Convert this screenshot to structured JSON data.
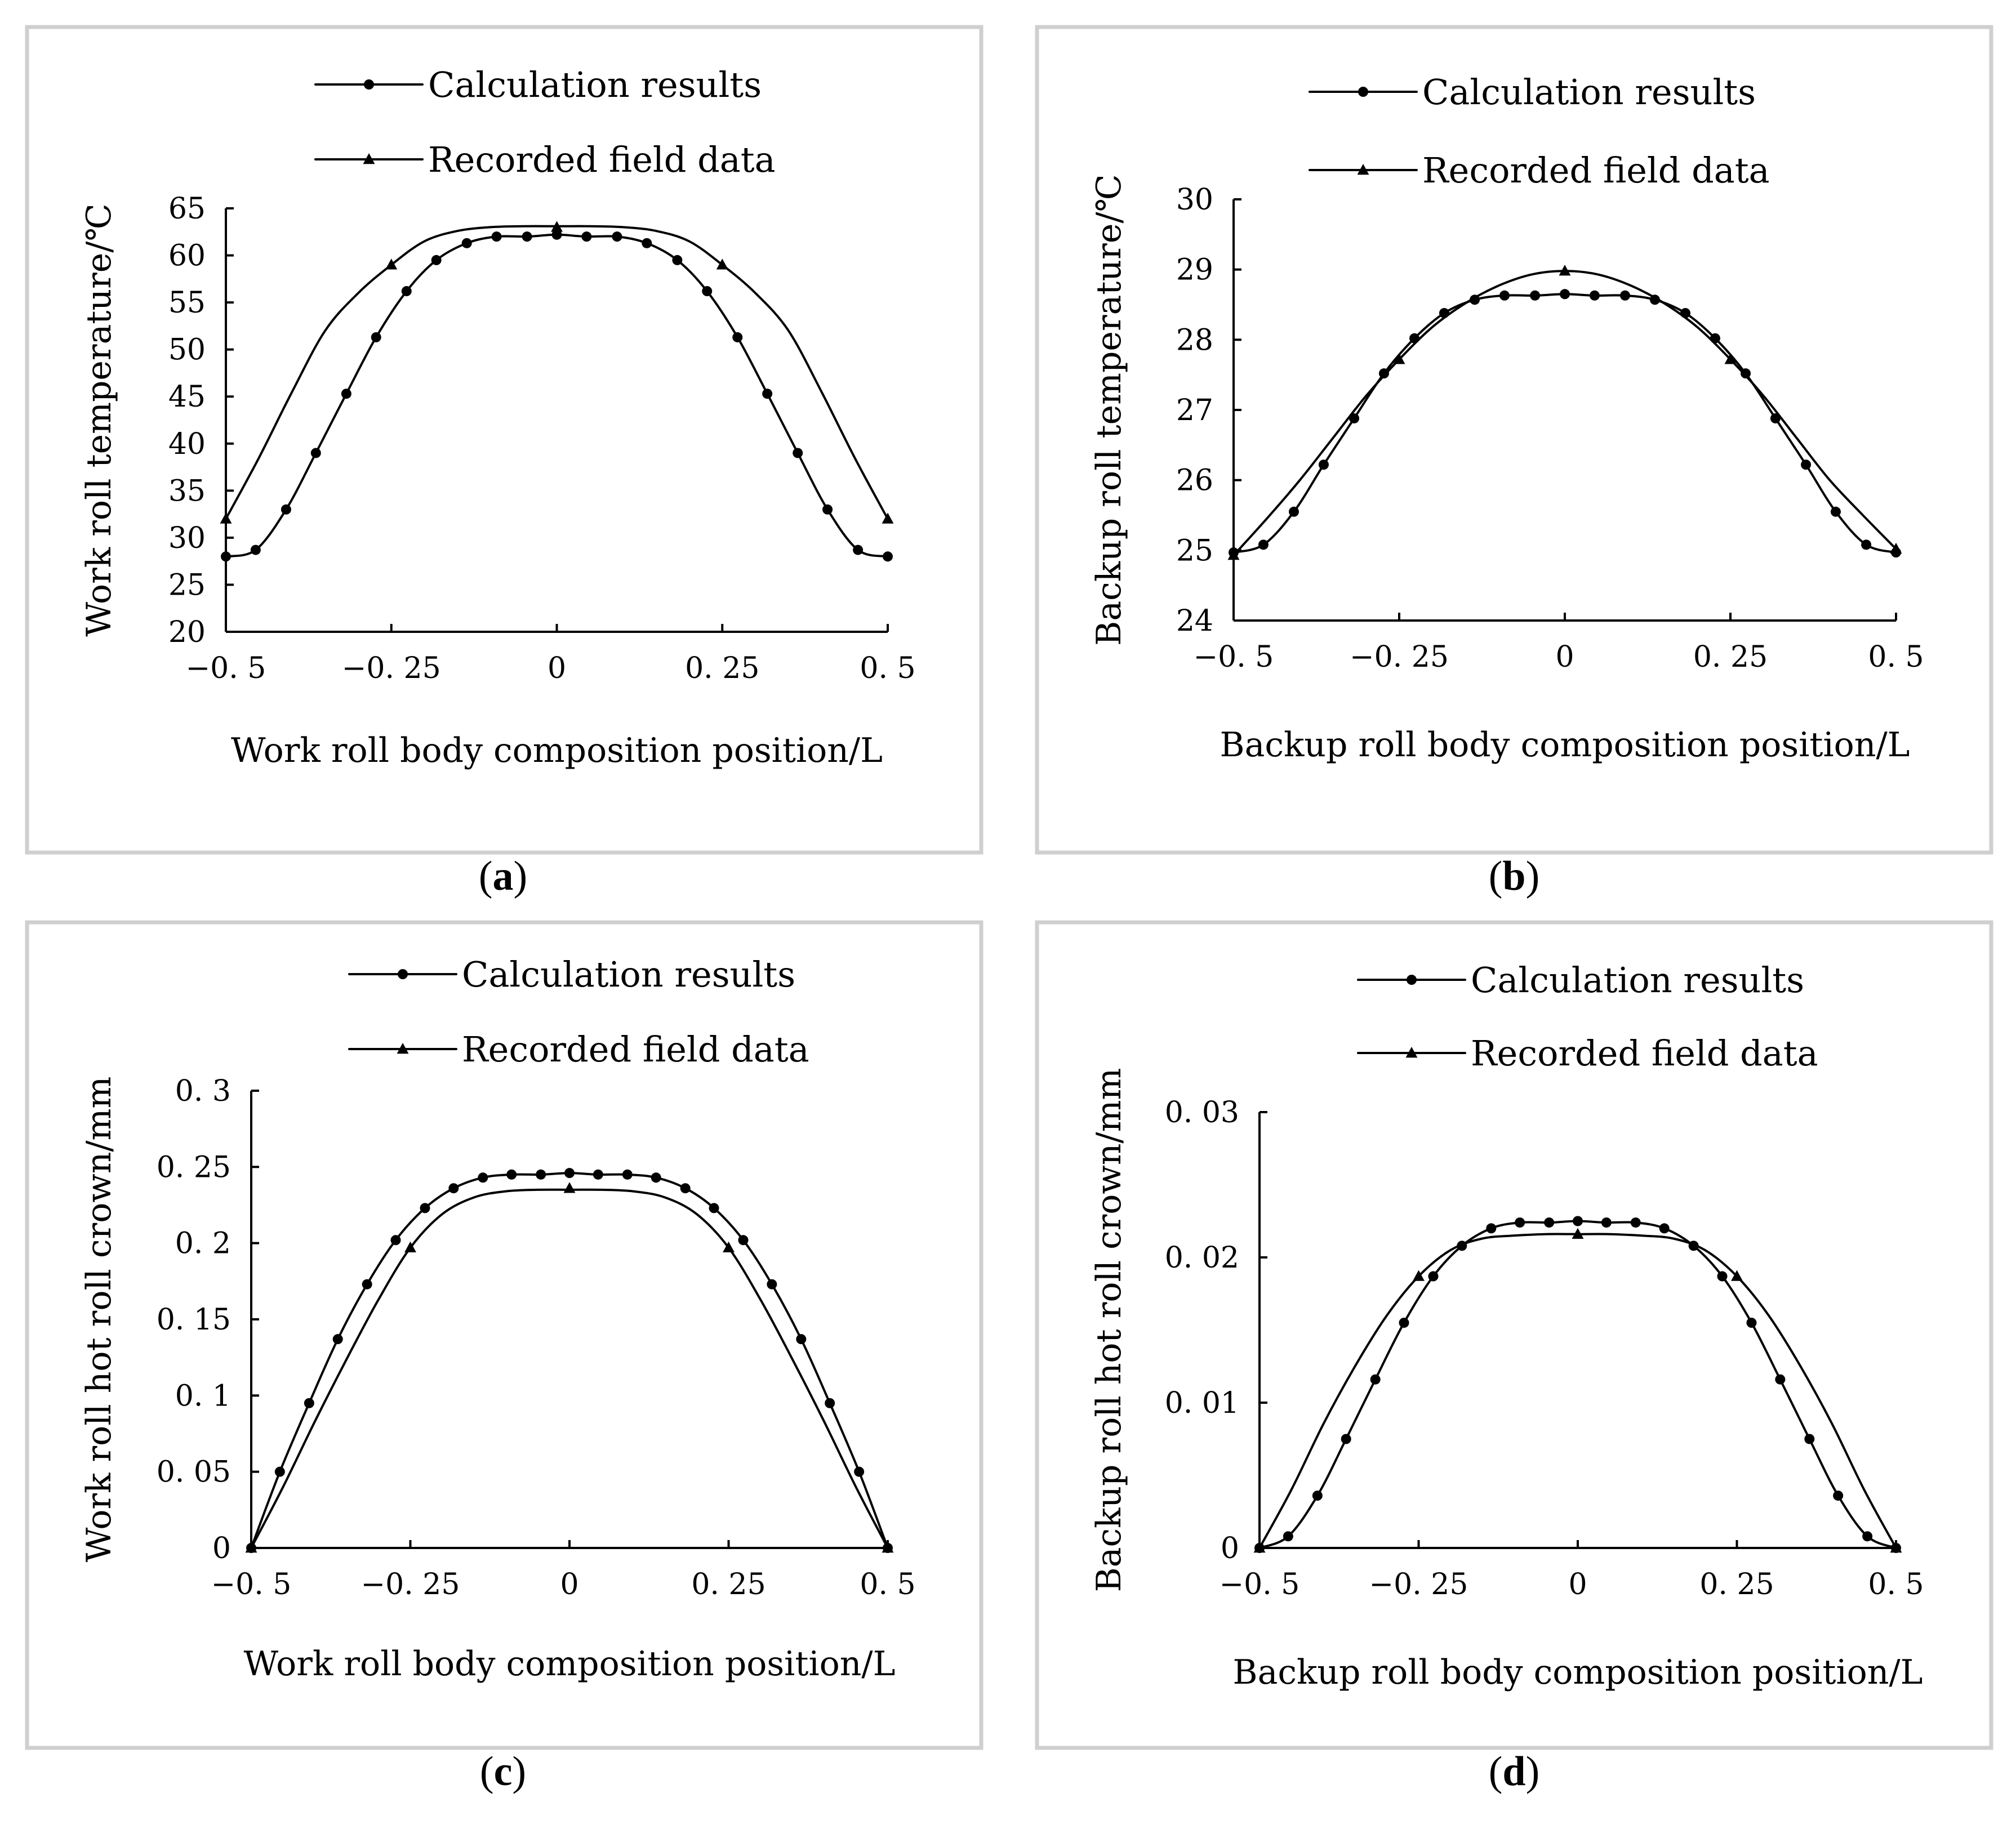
{
  "chart_data": [
    {
      "type": "line",
      "caption_letter": "a",
      "xlabel": "Work roll body composition position/L",
      "ylabel": "Work roll temperature/℃",
      "xlim": [
        -0.5,
        0.5
      ],
      "ylim": [
        20,
        65
      ],
      "xticks": [
        -0.5,
        -0.25,
        0,
        0.25,
        0.5
      ],
      "xtick_labels": [
        "−0. 5",
        "−0. 25",
        "0",
        "0. 25",
        "0. 5"
      ],
      "yticks": [
        20,
        25,
        30,
        35,
        40,
        45,
        50,
        55,
        60,
        65
      ],
      "ytick_labels": [
        "20",
        "25",
        "30",
        "35",
        "40",
        "45",
        "50",
        "55",
        "60",
        "65"
      ],
      "legend": {
        "position": "top",
        "entries": [
          "Calculation results",
          "Recorded field data"
        ]
      },
      "series": [
        {
          "name": "Calculation results",
          "marker": "circle",
          "x": [
            -0.5,
            -0.455,
            -0.409,
            -0.364,
            -0.318,
            -0.273,
            -0.227,
            -0.182,
            -0.136,
            -0.091,
            -0.045,
            0,
            0.045,
            0.091,
            0.136,
            0.182,
            0.227,
            0.273,
            0.318,
            0.364,
            0.409,
            0.455,
            0.5
          ],
          "values": [
            28,
            28.7,
            33,
            39,
            45.3,
            51.3,
            56.2,
            59.5,
            61.3,
            62,
            62,
            62.2,
            62,
            62,
            61.3,
            59.5,
            56.2,
            51.3,
            45.3,
            39,
            33,
            28.7,
            28
          ]
        },
        {
          "name": "Recorded field data",
          "marker": "triangle",
          "x": [
            -0.5,
            -0.25,
            0,
            0.25,
            0.5
          ],
          "values": [
            32,
            59,
            63,
            59,
            32
          ],
          "curve_x": [
            -0.5,
            -0.45,
            -0.4,
            -0.35,
            -0.3,
            -0.25,
            -0.2,
            -0.15,
            -0.1,
            -0.05,
            0,
            0.05,
            0.1,
            0.15,
            0.2,
            0.25,
            0.3,
            0.35,
            0.4,
            0.45,
            0.5
          ],
          "curve_values": [
            32,
            38.5,
            45.5,
            52,
            56,
            59,
            61.5,
            62.6,
            63,
            63.1,
            63.1,
            63.1,
            63,
            62.6,
            61.5,
            59,
            56,
            52,
            45.5,
            38.5,
            32
          ]
        }
      ]
    },
    {
      "type": "line",
      "caption_letter": "b",
      "xlabel": "Backup roll body composition position/L",
      "ylabel": "Backup roll temperature/℃",
      "xlim": [
        -0.5,
        0.5
      ],
      "ylim": [
        24,
        30
      ],
      "xticks": [
        -0.5,
        -0.25,
        0,
        0.25,
        0.5
      ],
      "xtick_labels": [
        "−0. 5",
        "−0. 25",
        "0",
        "0. 25",
        "0. 5"
      ],
      "yticks": [
        24,
        25,
        26,
        27,
        28,
        29,
        30
      ],
      "ytick_labels": [
        "24",
        "25",
        "26",
        "27",
        "28",
        "29",
        "30"
      ],
      "legend": {
        "position": "top",
        "entries": [
          "Calculation results",
          "Recorded field data"
        ]
      },
      "series": [
        {
          "name": "Calculation results",
          "marker": "circle",
          "x": [
            -0.5,
            -0.455,
            -0.409,
            -0.364,
            -0.318,
            -0.273,
            -0.227,
            -0.182,
            -0.136,
            -0.091,
            -0.045,
            0,
            0.045,
            0.091,
            0.136,
            0.182,
            0.227,
            0.273,
            0.318,
            0.364,
            0.409,
            0.455,
            0.5
          ],
          "values": [
            24.97,
            25.08,
            25.55,
            26.22,
            26.88,
            27.52,
            28.02,
            28.38,
            28.57,
            28.63,
            28.63,
            28.65,
            28.63,
            28.63,
            28.57,
            28.38,
            28.02,
            27.52,
            26.88,
            26.22,
            25.55,
            25.08,
            24.97
          ]
        },
        {
          "name": "Recorded field data",
          "marker": "triangle",
          "x": [
            -0.5,
            -0.25,
            0,
            0.25,
            0.5
          ],
          "values": [
            24.93,
            27.72,
            28.98,
            27.72,
            25.02
          ],
          "curve_x": [
            -0.5,
            -0.45,
            -0.4,
            -0.35,
            -0.3,
            -0.25,
            -0.2,
            -0.15,
            -0.1,
            -0.05,
            0,
            0.05,
            0.1,
            0.15,
            0.2,
            0.25,
            0.3,
            0.35,
            0.4,
            0.45,
            0.5
          ],
          "curve_values": [
            24.93,
            25.45,
            26.0,
            26.6,
            27.2,
            27.72,
            28.18,
            28.52,
            28.77,
            28.93,
            28.98,
            28.93,
            28.77,
            28.52,
            28.18,
            27.72,
            27.2,
            26.6,
            26.0,
            25.5,
            25.02
          ]
        }
      ]
    },
    {
      "type": "line",
      "caption_letter": "c",
      "xlabel": "Work roll body composition position/L",
      "ylabel": "Work roll hot roll crown/mm",
      "xlim": [
        -0.5,
        0.5
      ],
      "ylim": [
        0,
        0.3
      ],
      "xticks": [
        -0.5,
        -0.25,
        0,
        0.25,
        0.5
      ],
      "xtick_labels": [
        "−0. 5",
        "−0. 25",
        "0",
        "0. 25",
        "0. 5"
      ],
      "yticks": [
        0,
        0.05,
        0.1,
        0.15,
        0.2,
        0.25,
        0.3
      ],
      "ytick_labels": [
        "0",
        "0. 05",
        "0. 1",
        "0. 15",
        "0. 2",
        "0. 25",
        "0. 3"
      ],
      "legend": {
        "position": "top",
        "entries": [
          "Calculation results",
          "Recorded field data"
        ]
      },
      "series": [
        {
          "name": "Calculation results",
          "marker": "circle",
          "x": [
            -0.5,
            -0.455,
            -0.409,
            -0.364,
            -0.318,
            -0.273,
            -0.227,
            -0.182,
            -0.136,
            -0.091,
            -0.045,
            0,
            0.045,
            0.091,
            0.136,
            0.182,
            0.227,
            0.273,
            0.318,
            0.364,
            0.409,
            0.455,
            0.5
          ],
          "values": [
            0,
            0.05,
            0.095,
            0.137,
            0.173,
            0.202,
            0.223,
            0.236,
            0.243,
            0.245,
            0.245,
            0.246,
            0.245,
            0.245,
            0.243,
            0.236,
            0.223,
            0.202,
            0.173,
            0.137,
            0.095,
            0.05,
            0
          ]
        },
        {
          "name": "Recorded field data",
          "marker": "triangle",
          "x": [
            -0.5,
            -0.25,
            0,
            0.25,
            0.5
          ],
          "values": [
            0,
            0.197,
            0.236,
            0.197,
            0
          ],
          "curve_x": [
            -0.5,
            -0.45,
            -0.4,
            -0.35,
            -0.3,
            -0.25,
            -0.2,
            -0.15,
            -0.1,
            -0.05,
            0,
            0.05,
            0.1,
            0.15,
            0.2,
            0.25,
            0.3,
            0.35,
            0.4,
            0.45,
            0.5
          ],
          "curve_values": [
            0,
            0.04,
            0.083,
            0.124,
            0.163,
            0.197,
            0.219,
            0.23,
            0.234,
            0.235,
            0.235,
            0.235,
            0.234,
            0.23,
            0.219,
            0.197,
            0.163,
            0.124,
            0.083,
            0.04,
            0
          ]
        }
      ]
    },
    {
      "type": "line",
      "caption_letter": "d",
      "xlabel": "Backup roll body composition position/L",
      "ylabel": "Backup roll hot roll crown/mm",
      "xlim": [
        -0.5,
        0.5
      ],
      "ylim": [
        0,
        0.03
      ],
      "xticks": [
        -0.5,
        -0.25,
        0,
        0.25,
        0.5
      ],
      "xtick_labels": [
        "−0. 5",
        "−0. 25",
        "0",
        "0. 25",
        "0. 5"
      ],
      "yticks": [
        0,
        0.01,
        0.02,
        0.03
      ],
      "ytick_labels": [
        "0",
        "0. 01",
        "0. 02",
        "0. 03"
      ],
      "legend": {
        "position": "top",
        "entries": [
          "Calculation results",
          "Recorded field data"
        ]
      },
      "series": [
        {
          "name": "Calculation results",
          "marker": "circle",
          "x": [
            -0.5,
            -0.455,
            -0.409,
            -0.364,
            -0.318,
            -0.273,
            -0.227,
            -0.182,
            -0.136,
            -0.091,
            -0.045,
            0,
            0.045,
            0.091,
            0.136,
            0.182,
            0.227,
            0.273,
            0.318,
            0.364,
            0.409,
            0.455,
            0.5
          ],
          "values": [
            0,
            0.0008,
            0.0036,
            0.0075,
            0.0116,
            0.0155,
            0.0187,
            0.0208,
            0.022,
            0.0224,
            0.0224,
            0.0225,
            0.0224,
            0.0224,
            0.022,
            0.0208,
            0.0187,
            0.0155,
            0.0116,
            0.0075,
            0.0036,
            0.0008,
            0
          ]
        },
        {
          "name": "Recorded field data",
          "marker": "triangle",
          "x": [
            -0.5,
            -0.25,
            0,
            0.25,
            0.5
          ],
          "values": [
            0,
            0.0187,
            0.0216,
            0.0187,
            0
          ],
          "curve_x": [
            -0.5,
            -0.45,
            -0.4,
            -0.35,
            -0.3,
            -0.25,
            -0.2,
            -0.15,
            -0.1,
            -0.05,
            0,
            0.05,
            0.1,
            0.15,
            0.2,
            0.25,
            0.3,
            0.35,
            0.4,
            0.45,
            0.5
          ],
          "curve_values": [
            0,
            0.004,
            0.0085,
            0.0125,
            0.016,
            0.0187,
            0.0205,
            0.0213,
            0.0215,
            0.0216,
            0.0216,
            0.0216,
            0.0215,
            0.0213,
            0.0205,
            0.0187,
            0.016,
            0.0125,
            0.0085,
            0.004,
            0
          ]
        }
      ]
    }
  ]
}
